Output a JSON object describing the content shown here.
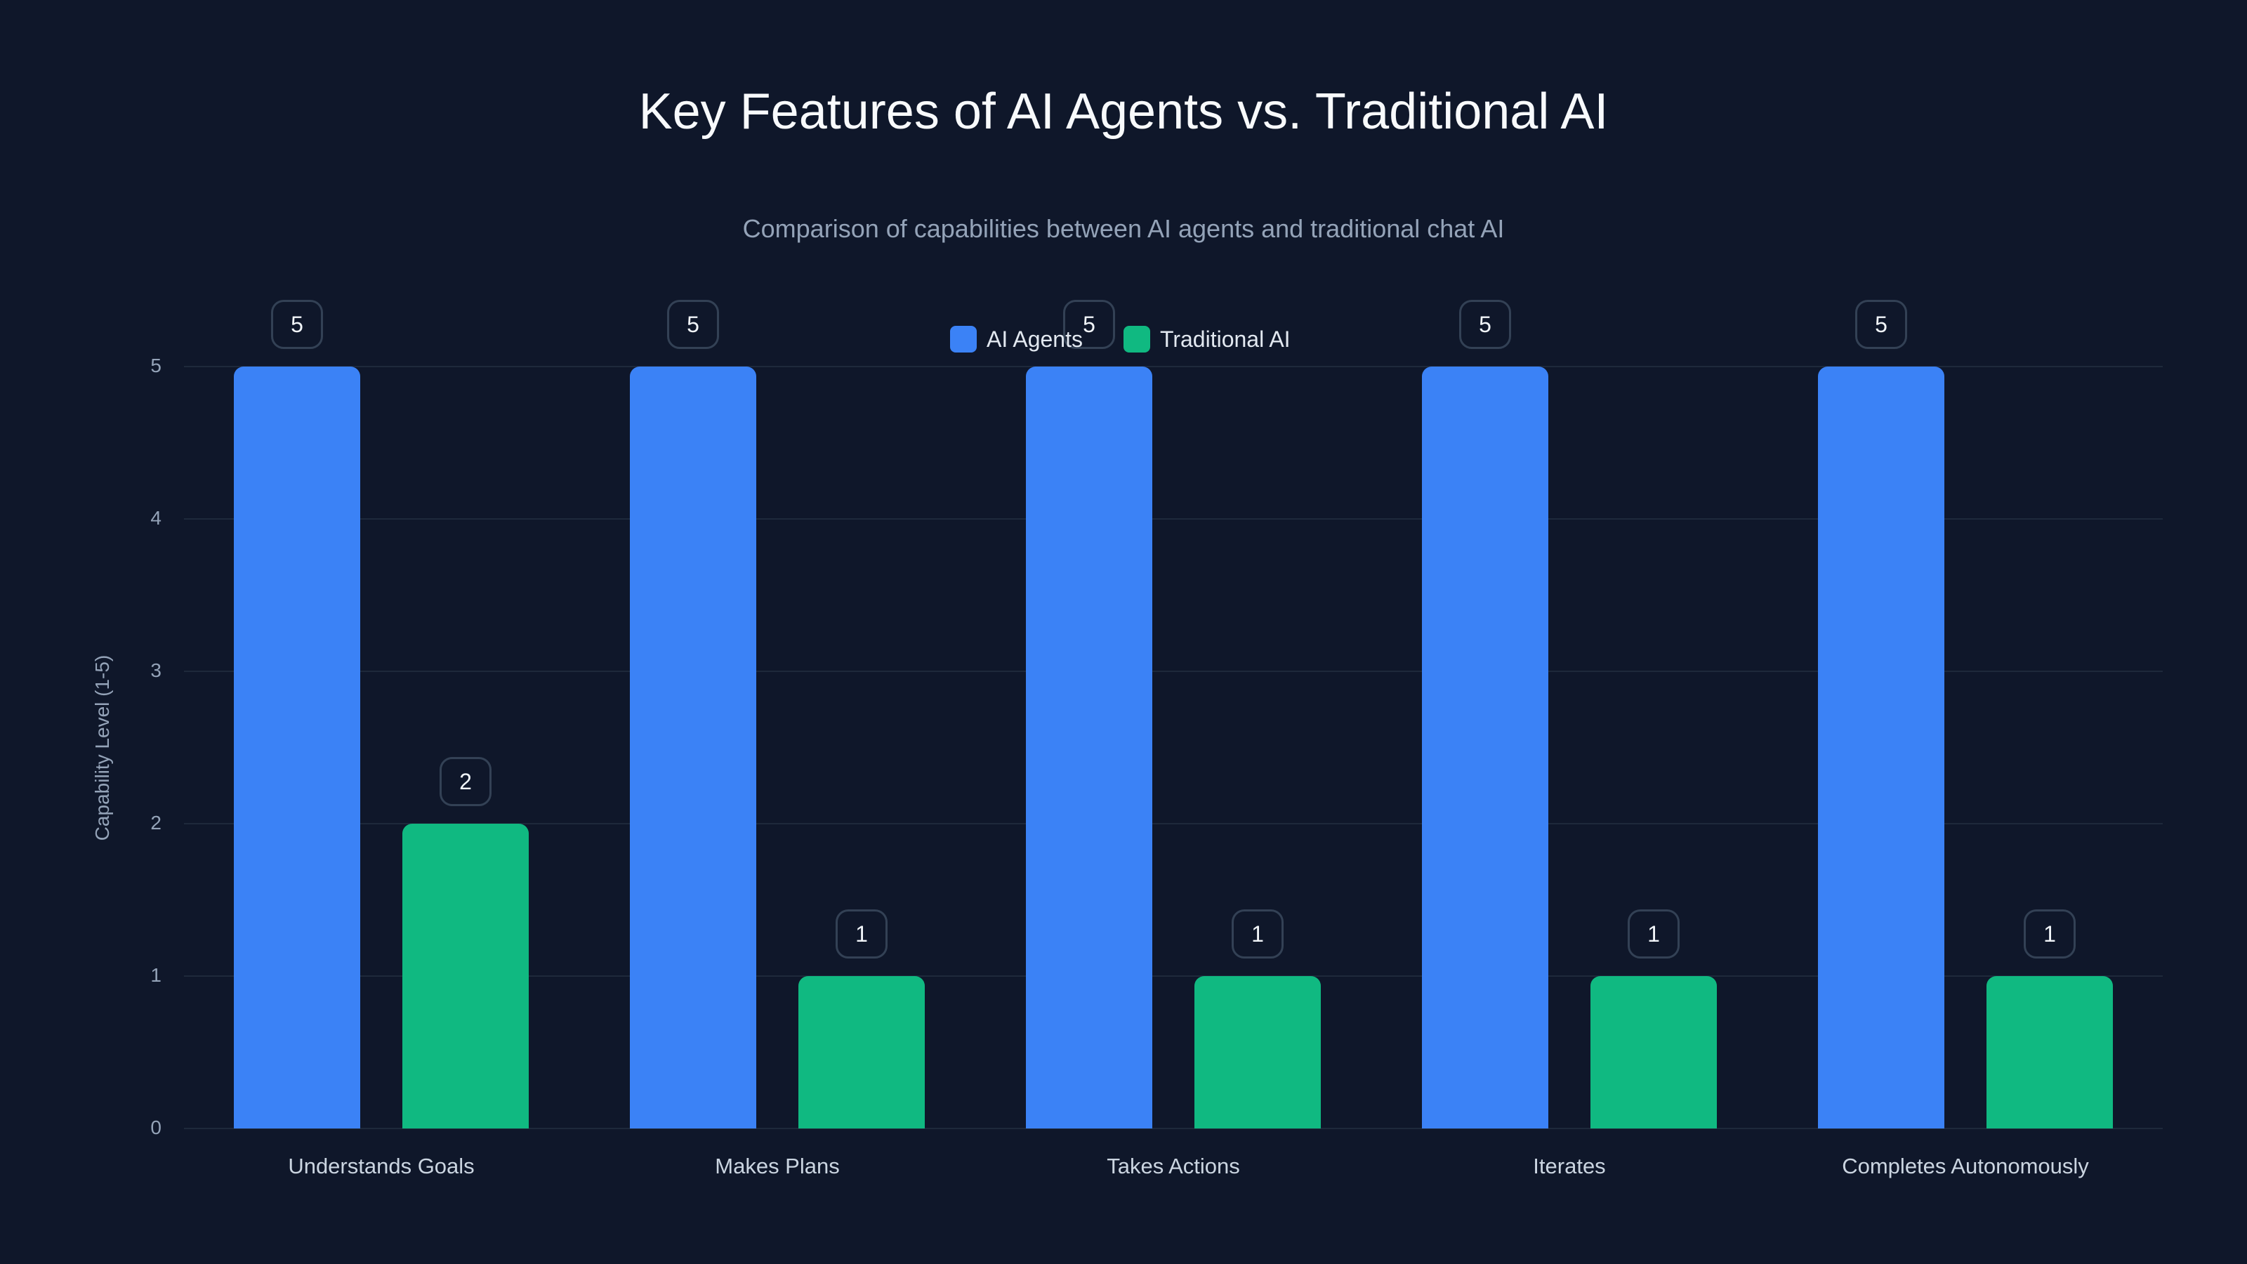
{
  "title": "Key Features of AI Agents vs. Traditional AI",
  "subtitle": "Comparison of capabilities between AI agents and traditional chat AI",
  "legend": [
    {
      "label": "AI Agents",
      "color": "#3b82f6"
    },
    {
      "label": "Traditional AI",
      "color": "#10b981"
    }
  ],
  "y_axis": {
    "label": "Capability Level (1-5)",
    "ticks": [
      "0",
      "1",
      "2",
      "3",
      "4",
      "5"
    ]
  },
  "x_axis": {
    "ticks": [
      "Understands Goals",
      "Makes Plans",
      "Takes Actions",
      "Iterates",
      "Completes Autonomously"
    ]
  },
  "bar_labels": {
    "ai_agents": [
      "5",
      "5",
      "5",
      "5",
      "5"
    ],
    "traditional": [
      "2",
      "1",
      "1",
      "1",
      "1"
    ]
  },
  "chart_data": {
    "type": "bar",
    "title": "Key Features of AI Agents vs. Traditional AI",
    "subtitle": "Comparison of capabilities between AI agents and traditional chat AI",
    "categories": [
      "Understands Goals",
      "Makes Plans",
      "Takes Actions",
      "Iterates",
      "Completes Autonomously"
    ],
    "series": [
      {
        "name": "AI Agents",
        "color": "#3b82f6",
        "values": [
          5,
          5,
          5,
          5,
          5
        ]
      },
      {
        "name": "Traditional AI",
        "color": "#10b981",
        "values": [
          2,
          1,
          1,
          1,
          1
        ]
      }
    ],
    "xlabel": "",
    "ylabel": "Capability Level (1-5)",
    "ylim": [
      0,
      5
    ],
    "yticks": [
      0,
      1,
      2,
      3,
      4,
      5
    ],
    "grid": true,
    "legend_position": "top-center",
    "data_labels": true
  }
}
